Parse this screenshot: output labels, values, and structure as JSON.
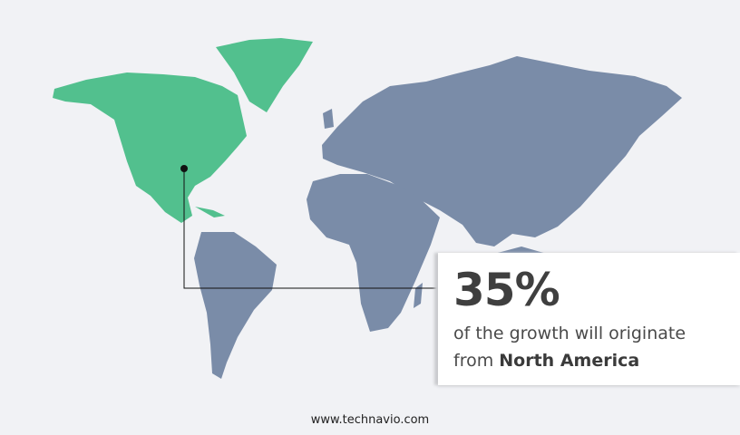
{
  "colors": {
    "background": "#f1f2f5",
    "highlight_region": "#52c08e",
    "other_regions": "#7a8ca8",
    "marker": "#111111"
  },
  "highlight_region": "North America",
  "callout": {
    "percent": "35%",
    "line1": "of the growth will originate",
    "line2_prefix": "from",
    "region": "North America"
  },
  "footer": {
    "website": "www.technavio.com"
  }
}
